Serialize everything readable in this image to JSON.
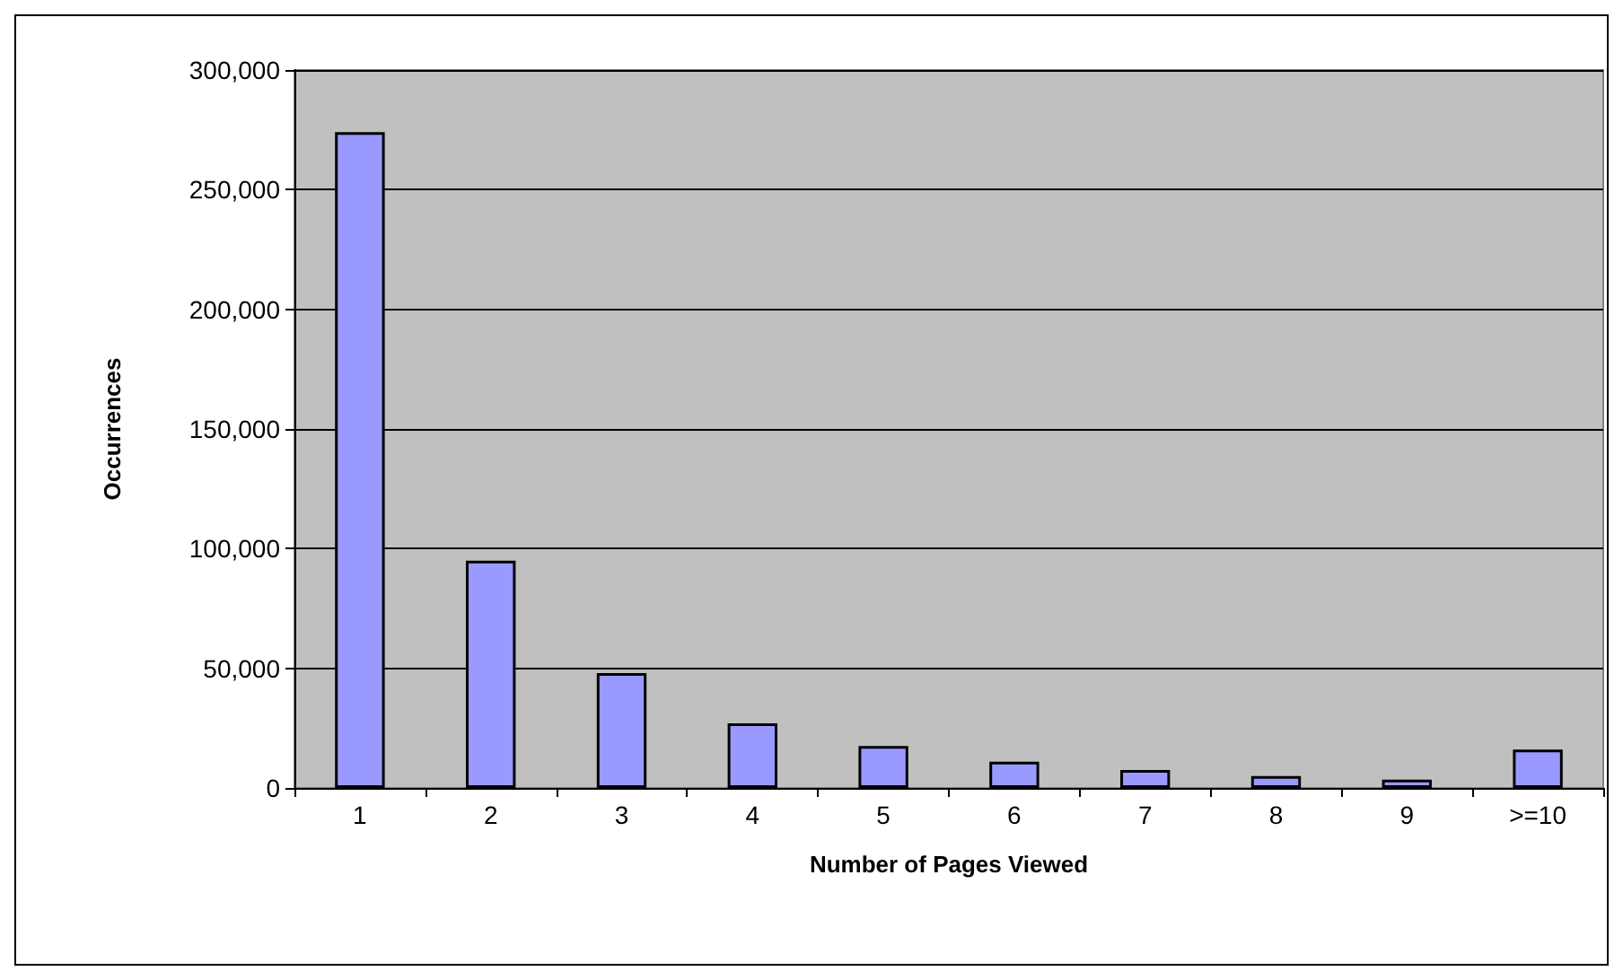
{
  "chart_data": {
    "type": "bar",
    "xlabel": "Number of Pages Viewed",
    "ylabel": "Occurrences",
    "categories": [
      "1",
      "2",
      "3",
      "4",
      "5",
      "6",
      "7",
      "8",
      "9",
      ">=10"
    ],
    "values": [
      274000,
      95000,
      48000,
      27000,
      17500,
      11000,
      7500,
      5000,
      3500,
      16000
    ],
    "color": "#9999ff",
    "ylim": [
      0,
      300000
    ],
    "yticks": [
      0,
      {
        "value": 50000,
        "label": "50,000"
      },
      {
        "value": 100000,
        "label": "100,000"
      },
      {
        "value": 150000,
        "label": "150,000"
      },
      {
        "value": 200000,
        "label": "200,000"
      },
      {
        "value": 250000,
        "label": "250,000"
      },
      {
        "value": 300000,
        "label": "300,000"
      }
    ],
    "grid": "y"
  }
}
